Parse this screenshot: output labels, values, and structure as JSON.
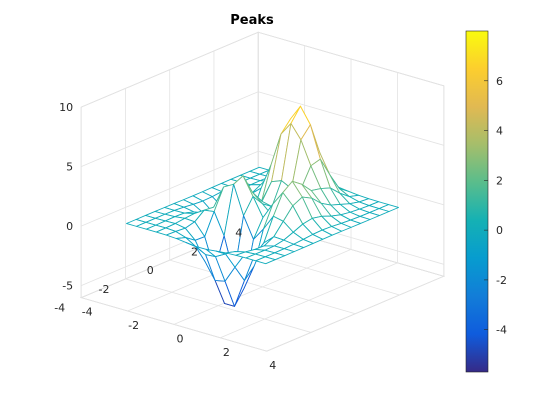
{
  "chart_data": {
    "type": "mesh",
    "title": "Peaks",
    "function": "peaks",
    "grid_points": 15,
    "xlim": [
      -4,
      4
    ],
    "ylim": [
      -4,
      4
    ],
    "zlim": [
      -6,
      10
    ],
    "x_ticks": [
      -4,
      -2,
      0,
      2,
      4
    ],
    "y_ticks": [
      -4,
      -2,
      0,
      2,
      4
    ],
    "z_ticks": [
      -5,
      0,
      5,
      10
    ],
    "z_min": -5.7,
    "z_max": 8.0,
    "colormap": "parula",
    "colorbar": {
      "range": [
        -5.7,
        8.0
      ],
      "ticks": [
        -4,
        -2,
        0,
        2,
        4,
        6
      ]
    },
    "view": {
      "azimuth": -37.5,
      "elevation": 30
    },
    "grid": true
  }
}
